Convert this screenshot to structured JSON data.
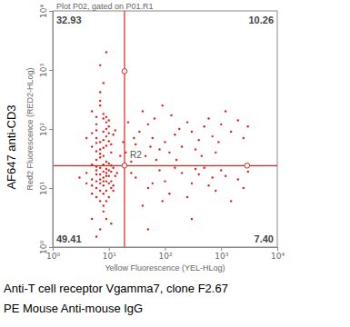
{
  "chart_data": {
    "type": "scatter",
    "title": "Plot P02, gated on P01.R1",
    "x_label": "Yellow Fluorescence (YEL-HLog)",
    "y_label": "Red2 Fluorescence (RED2-HLog)",
    "outer_y_label": "AF647 anti-CD3",
    "captions": [
      "Anti-T cell receptor Vgamma7, clone F2.67",
      "PE Mouse Anti-mouse IgG"
    ],
    "log": true,
    "color": "#e3211c",
    "marker": "dot",
    "xlim": [
      1,
      10000
    ],
    "ylim": [
      1,
      10000
    ],
    "xticks": [
      {
        "value": 1,
        "label": "10⁰"
      },
      {
        "value": 10,
        "label": "10¹"
      },
      {
        "value": 100,
        "label": "10²"
      },
      {
        "value": 1000,
        "label": "10³"
      },
      {
        "value": 10000,
        "label": "10⁴"
      }
    ],
    "yticks": [
      {
        "value": 1,
        "label": "10⁰"
      },
      {
        "value": 10,
        "label": "10¹"
      },
      {
        "value": 100,
        "label": "10²"
      },
      {
        "value": 1000,
        "label": "10³"
      },
      {
        "value": 10000,
        "label": "10⁴"
      }
    ],
    "quadrant": {
      "x": 19,
      "y": 24,
      "label": "R2"
    },
    "handles": [
      {
        "x": 19,
        "y": 950
      },
      {
        "x": 19,
        "y": 24
      },
      {
        "x": 2900,
        "y": 24
      }
    ],
    "quadrant_labels": {
      "top_left": "32.93",
      "top_right": "10.26",
      "bottom_left": "49.41",
      "bottom_right": "7.40"
    },
    "x": [
      8,
      7,
      9,
      6,
      10,
      8,
      5,
      11,
      7,
      9,
      6,
      12,
      8,
      4,
      10,
      7,
      9,
      6,
      13,
      8,
      5,
      11,
      7,
      9,
      6,
      10,
      8,
      12,
      4,
      7,
      9,
      5,
      11,
      8,
      6,
      10,
      7,
      14,
      3,
      9,
      8,
      6,
      12,
      7,
      10,
      5,
      9,
      8,
      11,
      6,
      7,
      8,
      6,
      9,
      5,
      10,
      7,
      8,
      6,
      9,
      11,
      7,
      5,
      8,
      10,
      6,
      9,
      7,
      12,
      8,
      6,
      4,
      9,
      7,
      10,
      5,
      8,
      11,
      6,
      9,
      7,
      8,
      13,
      6,
      10,
      20,
      30,
      45,
      60,
      80,
      100,
      150,
      200,
      300,
      400,
      500,
      700,
      1000,
      1500,
      2000,
      25,
      35,
      50,
      70,
      120,
      180,
      250,
      350,
      600,
      900,
      1200,
      18,
      40,
      90,
      16,
      22,
      28,
      55,
      130,
      800,
      2500,
      160,
      65,
      450,
      3000,
      30,
      50,
      80,
      120,
      200,
      300,
      500,
      800,
      1200,
      2000,
      40,
      100,
      150,
      250,
      400,
      600,
      1000,
      1500,
      3000,
      25,
      60,
      90,
      350,
      700,
      2500,
      7,
      9,
      6,
      11,
      5,
      8,
      50,
      300,
      7,
      9
    ],
    "values": [
      15,
      12,
      18,
      10,
      20,
      8,
      14,
      13,
      22,
      9,
      17,
      11,
      25,
      12,
      7,
      6,
      28,
      20,
      16,
      11,
      8,
      24,
      14,
      13,
      30,
      16,
      19,
      9,
      18,
      9,
      21,
      25,
      10,
      5,
      13,
      12,
      33,
      18,
      15,
      16,
      13,
      7,
      22,
      17,
      26,
      11,
      6,
      35,
      19,
      23,
      60,
      90,
      120,
      75,
      50,
      140,
      45,
      180,
      70,
      100,
      55,
      250,
      85,
      65,
      110,
      42,
      160,
      300,
      80,
      48,
      95,
      70,
      130,
      38,
      62,
      200,
      150,
      40,
      58,
      52,
      420,
      600,
      95,
      160,
      85,
      40,
      55,
      35,
      70,
      45,
      60,
      80,
      50,
      90,
      65,
      110,
      75,
      120,
      90,
      140,
      28,
      90,
      120,
      30,
      40,
      100,
      130,
      45,
      150,
      60,
      200,
      60,
      200,
      250,
      35,
      130,
      70,
      50,
      170,
      40,
      70,
      30,
      150,
      35,
      110,
      15,
      10,
      20,
      8,
      18,
      12,
      22,
      9,
      16,
      14,
      5,
      13,
      22,
      7,
      17,
      11,
      20,
      6,
      19,
      18,
      12,
      6,
      21,
      15,
      10,
      2,
      3,
      1.5,
      2.5,
      3,
      4,
      2,
      3,
      1200,
      2000
    ]
  }
}
